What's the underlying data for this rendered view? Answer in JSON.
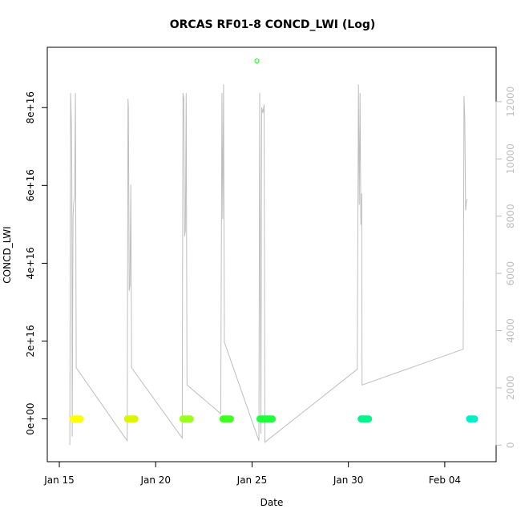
{
  "chart_data": {
    "type": "scatter",
    "title": "ORCAS RF01-8 CONCD_LWI (Log)",
    "xlabel": "Date",
    "ylabel": "CONCD_LWI",
    "x_ticks": [
      {
        "value": "2016-01-15",
        "label": "Jan 15"
      },
      {
        "value": "2016-01-20",
        "label": "Jan 20"
      },
      {
        "value": "2016-01-25",
        "label": "Jan 25"
      },
      {
        "value": "2016-01-30",
        "label": "Jan 30"
      },
      {
        "value": "2016-02-04",
        "label": "Feb 04"
      }
    ],
    "y_ticks": [
      {
        "value": 0,
        "label": "0e+00"
      },
      {
        "value": 2e+16,
        "label": "2e+16"
      },
      {
        "value": 4e+16,
        "label": "4e+16"
      },
      {
        "value": 6e+16,
        "label": "6e+16"
      },
      {
        "value": 8e+16,
        "label": "8e+16"
      }
    ],
    "y2_ticks": [
      {
        "value": 0,
        "label": "0"
      },
      {
        "value": 2000,
        "label": "2000"
      },
      {
        "value": 4000,
        "label": "4000"
      },
      {
        "value": 6000,
        "label": "6000"
      },
      {
        "value": 8000,
        "label": "8000"
      },
      {
        "value": 10000,
        "label": "10000"
      },
      {
        "value": 12000,
        "label": "12000"
      }
    ],
    "xlim": [
      "2016-01-14T09:00",
      "2016-02-06T16:00"
    ],
    "ylim": [
      -1.1e+16,
      9.55e+16
    ],
    "y2lim": [
      -580,
      13900
    ],
    "grid": false,
    "colors": {
      "axis": "#000000",
      "secondary_axis": "#bebebe",
      "altitude_trace": "#bebebe"
    },
    "points": [
      {
        "x": "2016-01-15T17:00",
        "y": 0,
        "color": "#ffff00"
      },
      {
        "x": "2016-01-15T20:00",
        "y": 0,
        "color": "#ffff00"
      },
      {
        "x": "2016-01-15T23:00",
        "y": 0,
        "color": "#ffff00"
      },
      {
        "x": "2016-01-16T02:00",
        "y": 0,
        "color": "#ffff00"
      },
      {
        "x": "2016-01-18T13:00",
        "y": 0,
        "color": "#dcf500"
      },
      {
        "x": "2016-01-18T16:00",
        "y": 0,
        "color": "#dcf500"
      },
      {
        "x": "2016-01-18T19:00",
        "y": 0,
        "color": "#dcf500"
      },
      {
        "x": "2016-01-18T22:00",
        "y": 0,
        "color": "#dcf500"
      },
      {
        "x": "2016-01-21T10:00",
        "y": 0,
        "color": "#9aff1e"
      },
      {
        "x": "2016-01-21T13:00",
        "y": 0,
        "color": "#9aff1e"
      },
      {
        "x": "2016-01-21T16:00",
        "y": 0,
        "color": "#9aff1e"
      },
      {
        "x": "2016-01-21T19:00",
        "y": 0,
        "color": "#9aff1e"
      },
      {
        "x": "2016-01-23T12:00",
        "y": 0,
        "color": "#3fff21"
      },
      {
        "x": "2016-01-23T15:00",
        "y": 0,
        "color": "#3fff21"
      },
      {
        "x": "2016-01-23T18:00",
        "y": 0,
        "color": "#3fff21"
      },
      {
        "x": "2016-01-23T21:00",
        "y": 0,
        "color": "#3fff21"
      },
      {
        "x": "2016-01-25T10:00",
        "y": 0,
        "color": "#1eff3c"
      },
      {
        "x": "2016-01-25T13:00",
        "y": 0,
        "color": "#1eff3c"
      },
      {
        "x": "2016-01-25T16:00",
        "y": 0,
        "color": "#1eff3c"
      },
      {
        "x": "2016-01-25T19:00",
        "y": 0,
        "color": "#1eff3c"
      },
      {
        "x": "2016-01-25T22:00",
        "y": 0,
        "color": "#1eff3c"
      },
      {
        "x": "2016-01-26T01:00",
        "y": 0,
        "color": "#1eff3c"
      },
      {
        "x": "2016-01-30T16:00",
        "y": 0,
        "color": "#00f58a"
      },
      {
        "x": "2016-01-30T19:00",
        "y": 0,
        "color": "#00f58a"
      },
      {
        "x": "2016-01-30T22:00",
        "y": 0,
        "color": "#00f58a"
      },
      {
        "x": "2016-01-31T01:00",
        "y": 0,
        "color": "#00f58a"
      },
      {
        "x": "2016-02-05T07:00",
        "y": 0,
        "color": "#00f0c8"
      },
      {
        "x": "2016-02-05T10:00",
        "y": 0,
        "color": "#00f0c8"
      },
      {
        "x": "2016-02-05T13:00",
        "y": 0,
        "color": "#00f0c8"
      }
    ],
    "outlier": {
      "x": "2016-01-25T06:00",
      "y": 9.2e+16,
      "color": "#00ff00"
    },
    "altitude_series_axis": "right",
    "altitude_series": [
      [
        "2016-01-15T13:00",
        0
      ],
      [
        "2016-01-15T14:00",
        12300
      ],
      [
        "2016-01-15T15:00",
        11200
      ],
      [
        "2016-01-15T15:30",
        9500
      ],
      [
        "2016-01-15T16:00",
        300
      ],
      [
        "2016-01-15T17:00",
        8000
      ],
      [
        "2016-01-15T18:00",
        8500
      ],
      [
        "2016-01-15T19:00",
        8700
      ],
      [
        "2016-01-15T20:00",
        12300
      ],
      [
        "2016-01-15T21:00",
        2700
      ],
      [
        "2016-01-18T12:30",
        150
      ],
      [
        "2016-01-18T13:30",
        12100
      ],
      [
        "2016-01-18T14:00",
        11800
      ],
      [
        "2016-01-18T15:00",
        5400
      ],
      [
        "2016-01-18T16:00",
        5600
      ],
      [
        "2016-01-18T17:00",
        9100
      ],
      [
        "2016-01-18T18:00",
        2700
      ],
      [
        "2016-01-21T09:00",
        250
      ],
      [
        "2016-01-21T10:00",
        12300
      ],
      [
        "2016-01-21T11:00",
        12100
      ],
      [
        "2016-01-21T12:00",
        7300
      ],
      [
        "2016-01-21T13:00",
        7500
      ],
      [
        "2016-01-21T14:00",
        12300
      ],
      [
        "2016-01-21T15:00",
        2100
      ],
      [
        "2016-01-23T09:00",
        1100
      ],
      [
        "2016-01-23T10:30",
        12300
      ],
      [
        "2016-01-23T11:30",
        7900
      ],
      [
        "2016-01-23T12:30",
        12600
      ],
      [
        "2016-01-23T13:30",
        3600
      ],
      [
        "2016-01-25T08:30",
        150
      ],
      [
        "2016-01-25T09:30",
        12300
      ],
      [
        "2016-01-25T11:00",
        400
      ],
      [
        "2016-01-25T12:00",
        11800
      ],
      [
        "2016-01-25T13:30",
        11600
      ],
      [
        "2016-01-25T15:00",
        11900
      ],
      [
        "2016-01-25T16:00",
        100
      ],
      [
        "2016-01-30T11:00",
        2650
      ],
      [
        "2016-01-30T12:30",
        12600
      ],
      [
        "2016-01-30T13:30",
        8400
      ],
      [
        "2016-01-30T14:30",
        12300
      ],
      [
        "2016-01-30T15:30",
        7700
      ],
      [
        "2016-01-30T16:30",
        8800
      ],
      [
        "2016-01-30T17:00",
        2100
      ],
      [
        "2016-02-04T23:00",
        3350
      ],
      [
        "2016-02-05T00:00",
        12200
      ],
      [
        "2016-02-05T01:00",
        11400
      ],
      [
        "2016-02-05T02:00",
        8200
      ],
      [
        "2016-02-05T03:00",
        8500
      ],
      [
        "2016-02-05T04:00",
        8600
      ]
    ]
  }
}
